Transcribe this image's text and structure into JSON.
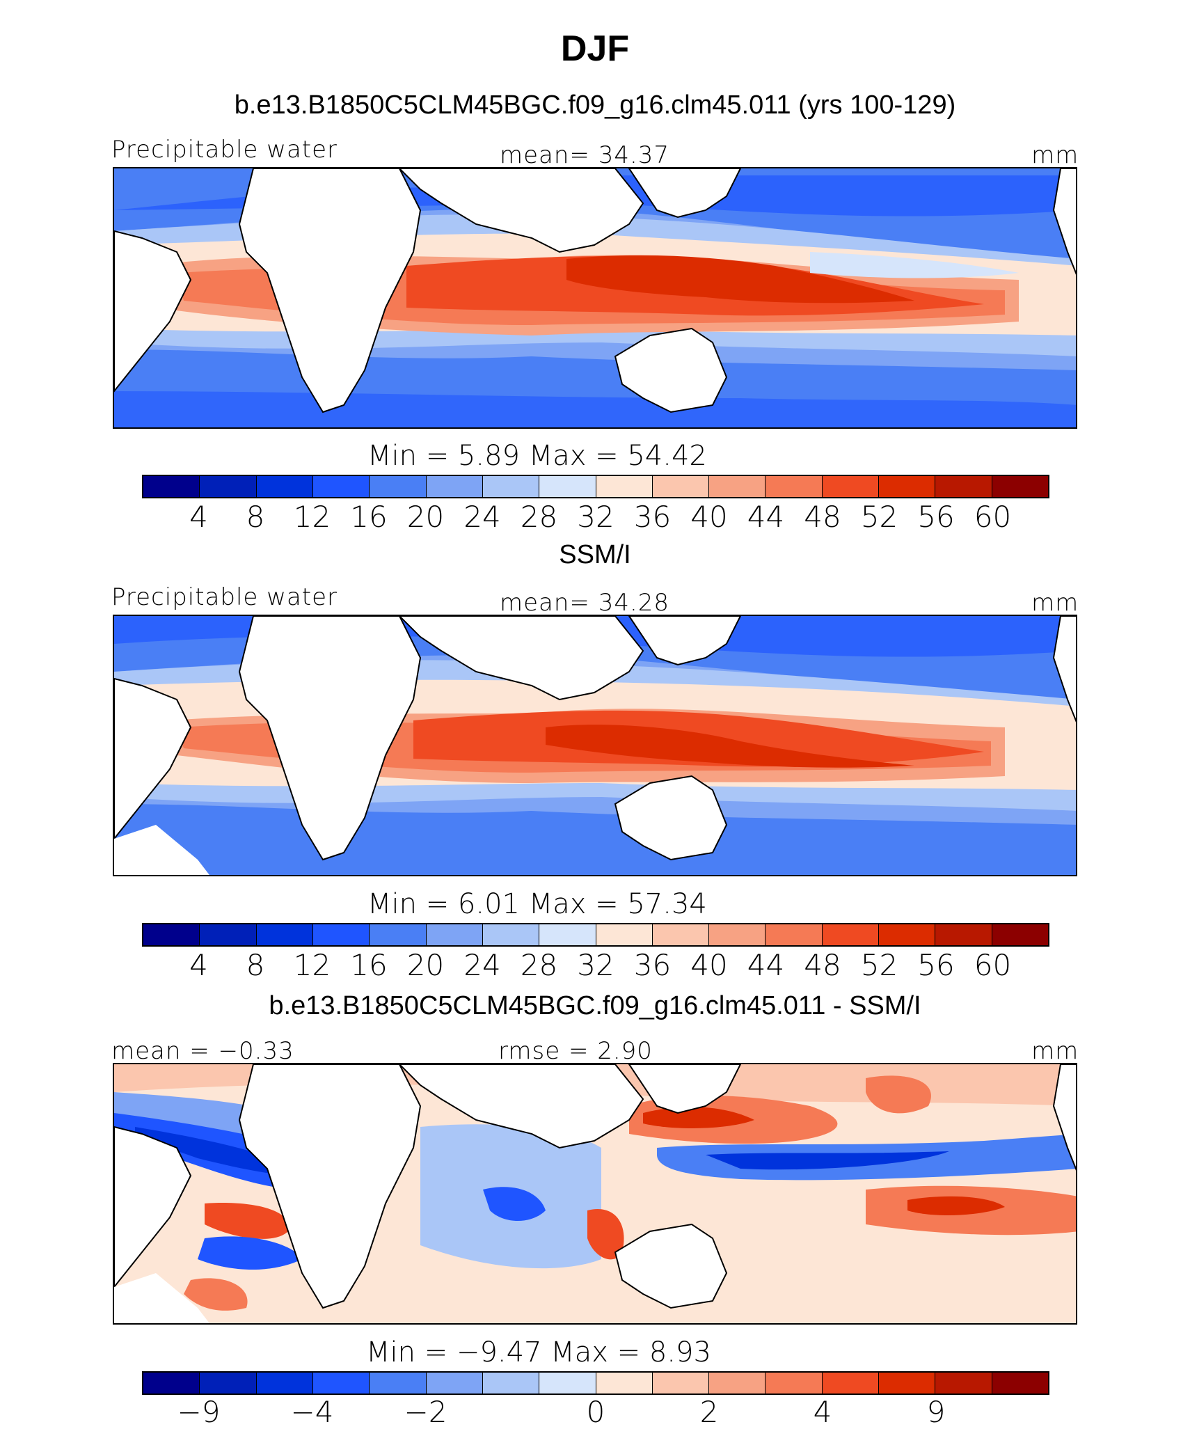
{
  "title": "DJF",
  "colors": {
    "abs": [
      "#00008c",
      "#0020b8",
      "#0033dc",
      "#1f55ff",
      "#4a7ff5",
      "#7ea4f5",
      "#aac6f7",
      "#d6e5fb",
      "#fde6d6",
      "#fbc6ae",
      "#f7a283",
      "#f57a55",
      "#ef4a22",
      "#dc2c00",
      "#b81800",
      "#8c0000"
    ],
    "diff": [
      "#00008c",
      "#0020b8",
      "#0033dc",
      "#1f55ff",
      "#4a7ff5",
      "#7ea4f5",
      "#aac6f7",
      "#d6e5fb",
      "#fde6d6",
      "#fbc6ae",
      "#f7a283",
      "#f57a55",
      "#ef4a22",
      "#dc2c00",
      "#b81800",
      "#8c0000"
    ]
  },
  "panel1": {
    "title": "b.e13.B1850C5CLM45BGC.f09_g16.clm45.011 (yrs 100-129)",
    "left_label": "Precipitable water",
    "center_label": "mean=   34.37",
    "right_label": "mm",
    "minmax": "Min  =     5.89  Max  =    54.42",
    "ticks": [
      "4",
      "8",
      "12",
      "16",
      "20",
      "24",
      "28",
      "32",
      "36",
      "40",
      "44",
      "48",
      "52",
      "56",
      "60"
    ]
  },
  "panel2": {
    "title": "SSM/I",
    "left_label": "Precipitable water",
    "center_label": "mean=   34.28",
    "right_label": "mm",
    "minmax": "Min  =     6.01  Max  =    57.34",
    "ticks": [
      "4",
      "8",
      "12",
      "16",
      "20",
      "24",
      "28",
      "32",
      "36",
      "40",
      "44",
      "48",
      "52",
      "56",
      "60"
    ]
  },
  "panel3": {
    "title": "b.e13.B1850C5CLM45BGC.f09_g16.clm45.011 - SSM/I",
    "left_label": "mean =   −0.33",
    "center_label": "rmse =     2.90",
    "right_label": "mm",
    "minmax": "Min  =   −9.47  Max  =     8.93",
    "ticks": [
      "−9",
      "−4",
      "−2",
      "0",
      "2",
      "4",
      "9"
    ]
  }
}
